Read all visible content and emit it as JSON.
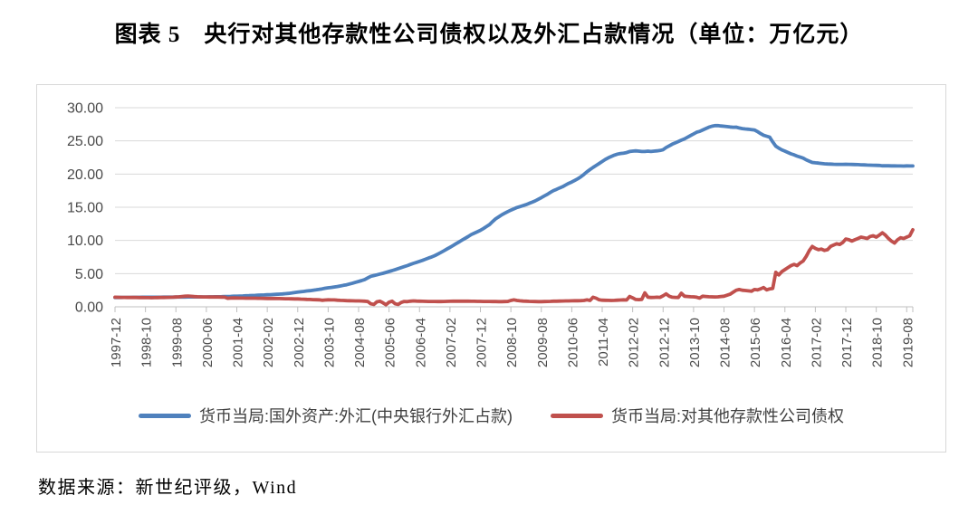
{
  "title": "图表 5　央行对其他存款性公司债权以及外汇占款情况（单位：万亿元）",
  "source_note": "数据来源：新世纪评级，Wind",
  "colors": {
    "series_fx_blue": "#4F81BD",
    "series_claims_red": "#C0504D",
    "gridline": "#D9D9D9",
    "axis_line": "#BFBFBF",
    "tick_label": "#4A4A4A",
    "frame_border": "#D8D8D8"
  },
  "chart_data": {
    "type": "line",
    "title": "图表 5 央行对其他存款性公司债权以及外汇占款情况（单位：万亿元）",
    "unit": "万亿元",
    "x_frequency": "monthly",
    "x_start": "1997-12",
    "x_end": "2019-10",
    "ylim": [
      0,
      30
    ],
    "y_tick_labels": [
      "0.00",
      "5.00",
      "10.00",
      "15.00",
      "20.00",
      "25.00",
      "30.00"
    ],
    "x_tick_labels": [
      "1997-12",
      "1998-10",
      "1999-08",
      "2000-06",
      "2001-04",
      "2002-02",
      "2002-12",
      "2003-10",
      "2004-08",
      "2005-06",
      "2006-04",
      "2007-02",
      "2007-12",
      "2008-10",
      "2009-08",
      "2010-06",
      "2011-04",
      "2012-02",
      "2012-12",
      "2013-10",
      "2014-08",
      "2015-06",
      "2016-04",
      "2017-02",
      "2017-12",
      "2018-10",
      "2019-08"
    ],
    "x_tick_interval_months": 10,
    "grid": "horizontal",
    "legend_position": "bottom",
    "series": [
      {
        "name": "货币当局:国外资产:外汇(中央银行外汇占款)",
        "color": "#4F81BD",
        "values": [
          1.4,
          1.41,
          1.41,
          1.42,
          1.42,
          1.42,
          1.43,
          1.43,
          1.43,
          1.44,
          1.44,
          1.44,
          1.45,
          1.45,
          1.45,
          1.45,
          1.46,
          1.46,
          1.46,
          1.46,
          1.47,
          1.47,
          1.47,
          1.47,
          1.48,
          1.48,
          1.48,
          1.48,
          1.48,
          1.49,
          1.49,
          1.5,
          1.5,
          1.51,
          1.52,
          1.53,
          1.55,
          1.56,
          1.57,
          1.59,
          1.6,
          1.62,
          1.64,
          1.66,
          1.68,
          1.7,
          1.72,
          1.74,
          1.77,
          1.79,
          1.81,
          1.83,
          1.85,
          1.88,
          1.91,
          1.94,
          1.98,
          2.02,
          2.07,
          2.14,
          2.21,
          2.26,
          2.32,
          2.38,
          2.43,
          2.49,
          2.55,
          2.62,
          2.7,
          2.79,
          2.86,
          2.92,
          2.98,
          3.05,
          3.14,
          3.23,
          3.32,
          3.43,
          3.56,
          3.7,
          3.82,
          3.95,
          4.1,
          4.35,
          4.59,
          4.7,
          4.81,
          4.93,
          5.05,
          5.18,
          5.32,
          5.45,
          5.6,
          5.75,
          5.9,
          6.05,
          6.21,
          6.38,
          6.54,
          6.69,
          6.84,
          7.0,
          7.17,
          7.35,
          7.52,
          7.7,
          7.93,
          8.18,
          8.44,
          8.7,
          8.96,
          9.22,
          9.5,
          9.78,
          10.05,
          10.32,
          10.6,
          10.88,
          11.1,
          11.3,
          11.52,
          11.8,
          12.1,
          12.4,
          12.85,
          13.25,
          13.55,
          13.85,
          14.1,
          14.35,
          14.56,
          14.75,
          14.96,
          15.1,
          15.25,
          15.4,
          15.58,
          15.76,
          15.95,
          16.2,
          16.45,
          16.7,
          16.95,
          17.25,
          17.51,
          17.7,
          17.9,
          18.1,
          18.35,
          18.6,
          18.8,
          19.05,
          19.3,
          19.6,
          19.95,
          20.35,
          20.68,
          21.0,
          21.3,
          21.6,
          21.9,
          22.2,
          22.45,
          22.65,
          22.85,
          23.0,
          23.1,
          23.15,
          23.24,
          23.4,
          23.45,
          23.5,
          23.45,
          23.4,
          23.4,
          23.45,
          23.4,
          23.45,
          23.5,
          23.55,
          23.67,
          24.0,
          24.25,
          24.5,
          24.7,
          24.9,
          25.1,
          25.3,
          25.55,
          25.8,
          26.05,
          26.3,
          26.43,
          26.65,
          26.85,
          27.05,
          27.2,
          27.3,
          27.3,
          27.25,
          27.2,
          27.15,
          27.1,
          27.05,
          27.07,
          26.95,
          26.85,
          26.8,
          26.75,
          26.7,
          26.65,
          26.4,
          26.1,
          25.85,
          25.7,
          25.55,
          24.85,
          24.2,
          23.9,
          23.65,
          23.45,
          23.25,
          23.05,
          22.9,
          22.7,
          22.55,
          22.4,
          22.15,
          21.94,
          21.75,
          21.7,
          21.65,
          21.6,
          21.55,
          21.52,
          21.5,
          21.48,
          21.47,
          21.46,
          21.47,
          21.48,
          21.47,
          21.45,
          21.43,
          21.42,
          21.4,
          21.38,
          21.36,
          21.34,
          21.33,
          21.32,
          21.3,
          21.25,
          21.24,
          21.24,
          21.23,
          21.23,
          21.22,
          21.22,
          21.21,
          21.23,
          21.22,
          21.22
        ]
      },
      {
        "name": "货币当局:对其他存款性公司债权",
        "color": "#C0504D",
        "values": [
          1.44,
          1.43,
          1.42,
          1.42,
          1.41,
          1.41,
          1.4,
          1.4,
          1.39,
          1.39,
          1.38,
          1.38,
          1.37,
          1.38,
          1.39,
          1.4,
          1.41,
          1.42,
          1.43,
          1.45,
          1.47,
          1.5,
          1.55,
          1.6,
          1.62,
          1.58,
          1.54,
          1.52,
          1.5,
          1.49,
          1.48,
          1.47,
          1.47,
          1.48,
          1.47,
          1.46,
          1.45,
          1.28,
          1.32,
          1.33,
          1.32,
          1.31,
          1.31,
          1.3,
          1.3,
          1.29,
          1.29,
          1.28,
          1.28,
          1.27,
          1.26,
          1.26,
          1.25,
          1.24,
          1.24,
          1.23,
          1.22,
          1.21,
          1.2,
          1.19,
          1.18,
          1.16,
          1.14,
          1.12,
          1.1,
          1.08,
          1.06,
          1.05,
          0.98,
          1.02,
          1.05,
          1.04,
          1.03,
          1.0,
          0.97,
          0.95,
          0.93,
          0.92,
          0.9,
          0.89,
          0.88,
          0.87,
          0.85,
          0.8,
          0.45,
          0.35,
          0.75,
          0.85,
          0.6,
          0.32,
          0.7,
          0.85,
          0.45,
          0.35,
          0.65,
          0.8,
          0.78,
          0.85,
          0.88,
          0.86,
          0.84,
          0.83,
          0.82,
          0.81,
          0.8,
          0.8,
          0.79,
          0.79,
          0.8,
          0.82,
          0.83,
          0.84,
          0.84,
          0.85,
          0.85,
          0.84,
          0.84,
          0.83,
          0.83,
          0.82,
          0.82,
          0.81,
          0.8,
          0.8,
          0.79,
          0.79,
          0.78,
          0.78,
          0.79,
          0.8,
          0.95,
          1.05,
          0.95,
          0.9,
          0.86,
          0.84,
          0.82,
          0.8,
          0.79,
          0.78,
          0.78,
          0.79,
          0.8,
          0.82,
          0.84,
          0.85,
          0.86,
          0.87,
          0.88,
          0.89,
          0.9,
          0.91,
          0.92,
          0.93,
          0.95,
          1.05,
          0.95,
          1.45,
          1.3,
          1.05,
          1.0,
          0.98,
          0.97,
          0.96,
          0.97,
          0.99,
          1.02,
          1.05,
          1.02,
          1.55,
          1.35,
          1.1,
          1.08,
          1.12,
          2.1,
          1.45,
          1.4,
          1.42,
          1.45,
          1.42,
          1.67,
          1.95,
          1.6,
          1.45,
          1.42,
          1.4,
          2.05,
          1.6,
          1.55,
          1.52,
          1.5,
          1.45,
          1.31,
          1.6,
          1.55,
          1.52,
          1.5,
          1.48,
          1.5,
          1.55,
          1.6,
          1.75,
          1.9,
          2.2,
          2.5,
          2.6,
          2.5,
          2.45,
          2.4,
          2.35,
          2.6,
          2.55,
          2.7,
          2.9,
          2.55,
          2.7,
          2.75,
          5.2,
          4.8,
          5.3,
          5.6,
          5.9,
          6.2,
          6.4,
          6.2,
          6.6,
          6.9,
          7.6,
          8.47,
          9.1,
          8.8,
          8.6,
          8.7,
          8.5,
          8.6,
          9.1,
          9.3,
          9.5,
          9.4,
          9.7,
          10.22,
          10.1,
          9.9,
          10.1,
          10.3,
          10.5,
          10.4,
          10.3,
          10.6,
          10.7,
          10.5,
          10.8,
          11.15,
          10.8,
          10.3,
          9.9,
          9.6,
          10.1,
          10.4,
          10.3,
          10.5,
          10.7,
          11.6
        ]
      }
    ]
  }
}
